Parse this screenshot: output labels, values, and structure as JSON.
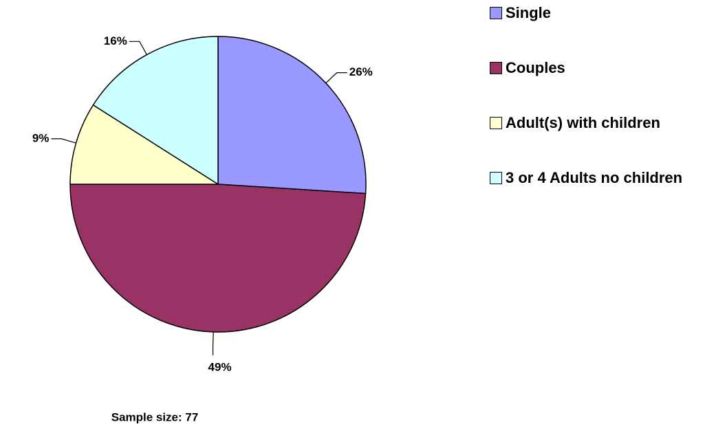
{
  "chart_data": {
    "type": "pie",
    "categories": [
      "Single",
      "Couples",
      "Adult(s) with children",
      "3 or 4 Adults no children"
    ],
    "values": [
      26,
      49,
      9,
      16
    ],
    "value_labels": [
      "26%",
      "49%",
      "9%",
      "16%"
    ],
    "colors": [
      "#9999ff",
      "#993366",
      "#ffffcc",
      "#ccffff"
    ],
    "note": "Sample size: 77",
    "legend": "right"
  }
}
